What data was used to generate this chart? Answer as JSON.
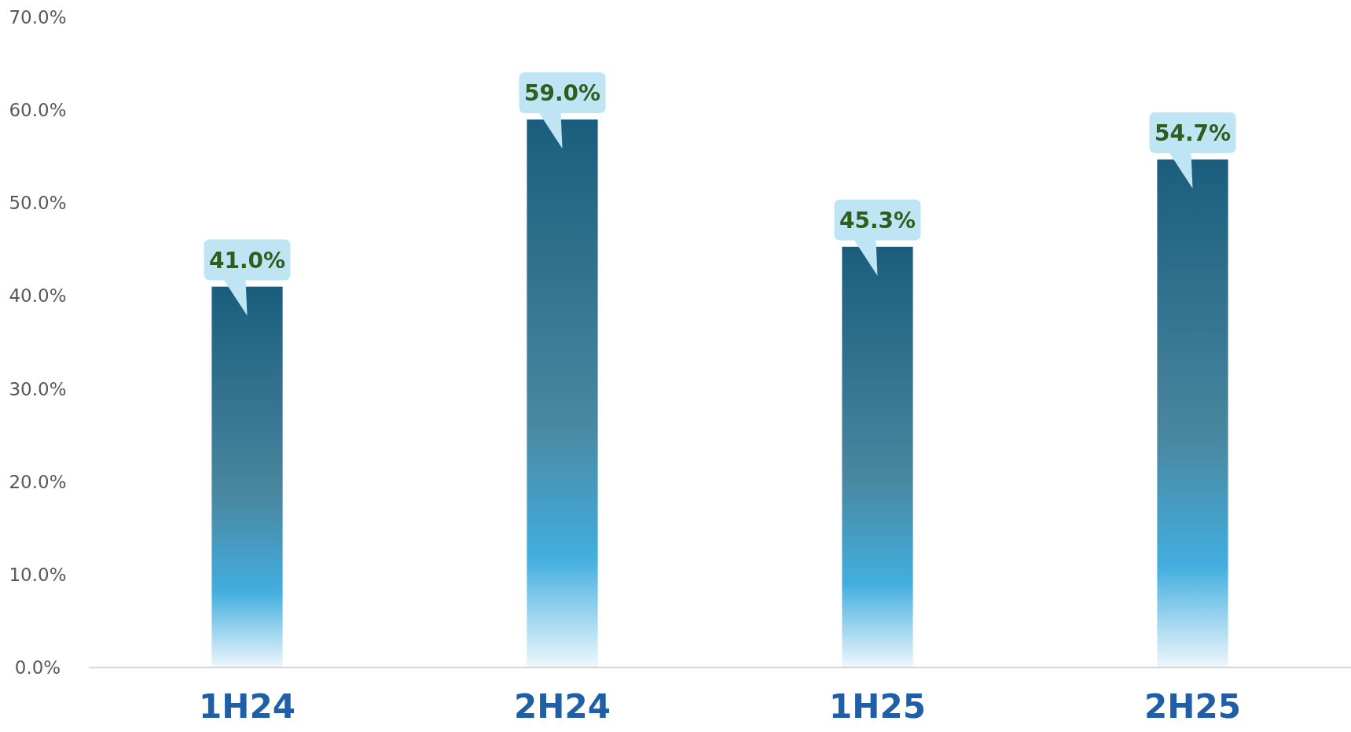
{
  "chart_data": {
    "type": "bar",
    "categories": [
      "1H24",
      "2H24",
      "1H25",
      "2H25"
    ],
    "values": [
      41.0,
      59.0,
      45.3,
      54.7
    ],
    "color": "#1a5d7d",
    "ylim": [
      0,
      70
    ],
    "yticks": [
      {
        "value": 0,
        "label": "0.0%"
      },
      {
        "value": 10,
        "label": "10.0%"
      },
      {
        "value": 20,
        "label": "20.0%"
      },
      {
        "value": 30,
        "label": "30.0%"
      },
      {
        "value": 40,
        "label": "40.0%"
      },
      {
        "value": 50,
        "label": "50.0%"
      },
      {
        "value": 60,
        "label": "60.0%"
      },
      {
        "value": 70,
        "label": "70.0%"
      }
    ],
    "value_labels": [
      "41.0%",
      "59.0%",
      "45.3%",
      "54.7%"
    ],
    "grid": false
  }
}
